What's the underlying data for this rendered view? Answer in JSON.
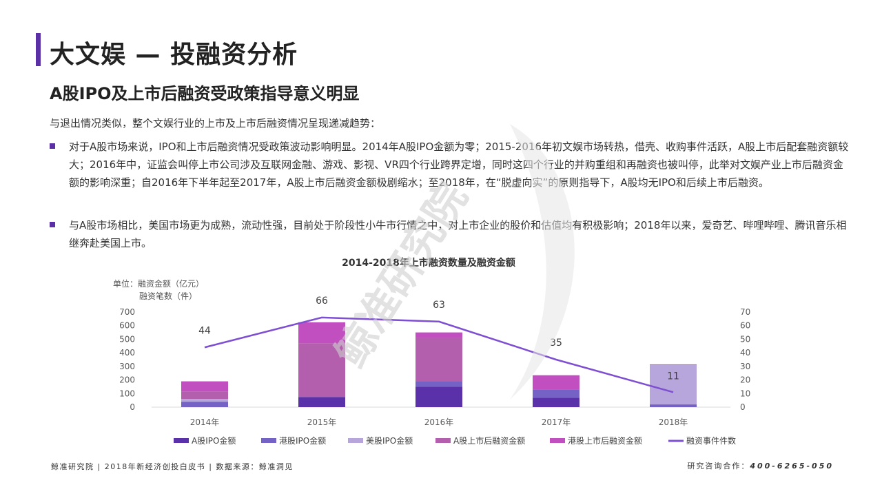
{
  "header": {
    "title": "大文娱 — 投融资分析",
    "subtitle": "A股IPO及上市后融资受政策指导意义明显"
  },
  "body": {
    "intro": "与退出情况类似，整个文娱行业的上市及上市后融资情况呈现递减趋势：",
    "bullets": [
      "对于A股市场来说，IPO和上市后融资情况受政策波动影响明显。2014年A股IPO金额为零；2015-2016年初文娱市场转热，借壳、收购事件活跃，A股上市后配套融资额较大；2016年中，证监会叫停上市公司涉及互联网金融、游戏、影视、VR四个行业跨界定增，同时这四个行业的并购重组和再融资也被叫停，此举对文娱产业上市后融资金额的影响深重；自2016年下半年起至2017年，A股上市后融资金额极剧缩水；至2018年，在“脱虚向实”的原则指导下，A股均无IPO和后续上市后融资。",
      "与A股市场相比，美国市场更为成熟，流动性强，目前处于阶段性小牛市行情之中，对上市企业的股价和估值均有积极影响；2018年以来，爱奇艺、哔哩哔哩、腾讯音乐相继奔赴美国上市。"
    ]
  },
  "watermark": "鲸准研究院",
  "chart_data": {
    "type": "bar",
    "title": "2014-2018年上市融资数量及融资金额",
    "unit_label_1": "单位：融资金额（亿元）",
    "unit_label_2": "融资笔数（件）",
    "categories": [
      "2014年",
      "2015年",
      "2016年",
      "2017年",
      "2018年"
    ],
    "ylim_left": [
      0,
      700
    ],
    "yticks_left": [
      0,
      100,
      200,
      300,
      400,
      500,
      600,
      700
    ],
    "ylim_right": [
      0,
      70
    ],
    "yticks_right": [
      0,
      10,
      20,
      30,
      40,
      50,
      60,
      70
    ],
    "stacked": true,
    "series": [
      {
        "name": "A股IPO金额",
        "color": "#5a31a8",
        "values": [
          0,
          75,
          150,
          70,
          0
        ]
      },
      {
        "name": "港股IPO金额",
        "color": "#7462c4",
        "values": [
          40,
          0,
          40,
          60,
          20
        ]
      },
      {
        "name": "美股IPO金额",
        "color": "#b7a6dc",
        "values": [
          20,
          0,
          0,
          0,
          290
        ]
      },
      {
        "name": "A股上市后融资金额",
        "color": "#b45fad",
        "values": [
          55,
          395,
          320,
          0,
          0
        ]
      },
      {
        "name": "港股上市后融资金额",
        "color": "#c24fc0",
        "values": [
          75,
          155,
          40,
          105,
          5
        ]
      }
    ],
    "line": {
      "name": "融资事件件数",
      "color": "#7e4fd0",
      "values": [
        44,
        66,
        63,
        35,
        11
      ]
    },
    "legend_position": "bottom"
  },
  "footer": {
    "left": "鲸准研究院 | 2018年新经济创投白皮书 | 数据来源：鲸准洞见",
    "right_label": "研究咨询合作：",
    "right_phone": "400-6265-050"
  }
}
